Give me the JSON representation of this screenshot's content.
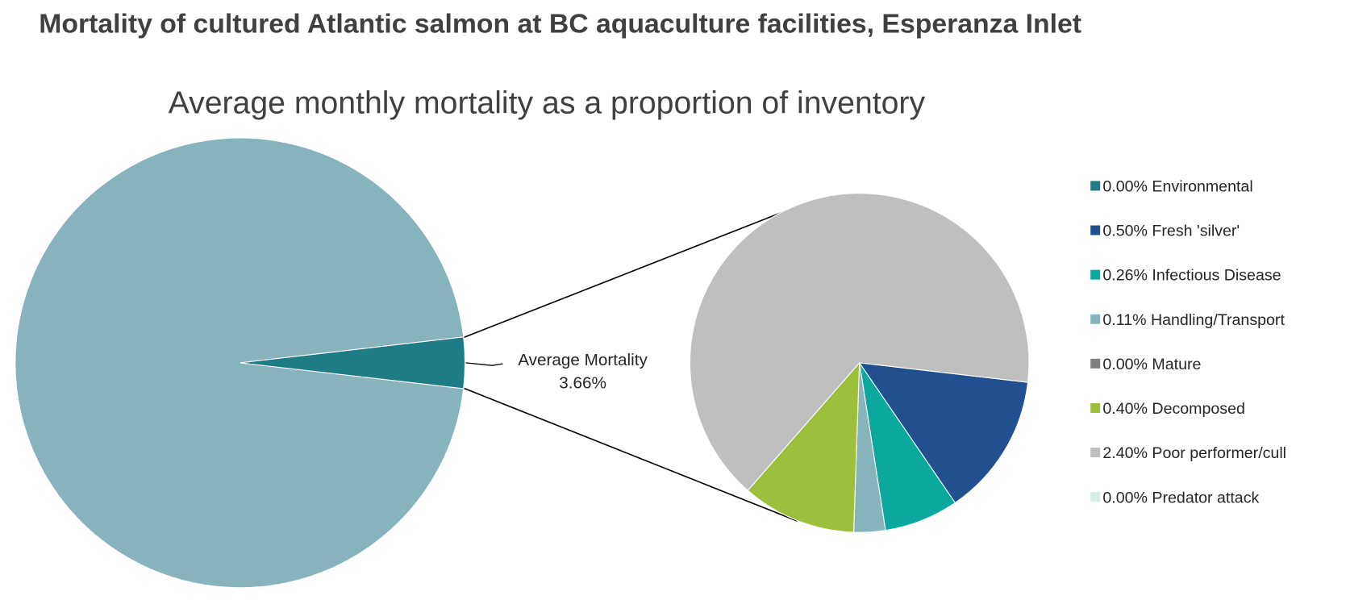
{
  "chart_data": [
    {
      "type": "pie",
      "title": "Mortality of cultured Atlantic salmon at BC aquaculture facilities, Esperanza Inlet",
      "subtitle": "Average monthly mortality as a proportion of inventory",
      "categories": [
        null,
        "Average Mortality"
      ],
      "values": [
        96.34,
        3.66
      ],
      "value_labels": [
        null,
        "3.66%"
      ],
      "colors": [
        "#87b4bc",
        "#1f7b85"
      ]
    },
    {
      "type": "pie",
      "categories": [
        "Environmental",
        "Fresh 'silver'",
        "Infectious Disease",
        "Handling/Transport",
        "Mature",
        "Decomposed",
        "Poor performer/cull",
        "Predator attack"
      ],
      "values": [
        0,
        0.5,
        0.26,
        0.11,
        0,
        0.4,
        2.4,
        0
      ],
      "value_labels": [
        "0.00%",
        "0.50%",
        "0.26%",
        "0.11%",
        "0.00%",
        "0.40%",
        "2.40%",
        "0.00%"
      ],
      "colors": [
        "#1f7b85",
        "#22508f",
        "#0aa89e",
        "#86b4bc",
        "#7f7f7f",
        "#9dc03c",
        "#bfbfbf",
        "#d6ecea"
      ],
      "legend": "right"
    }
  ]
}
